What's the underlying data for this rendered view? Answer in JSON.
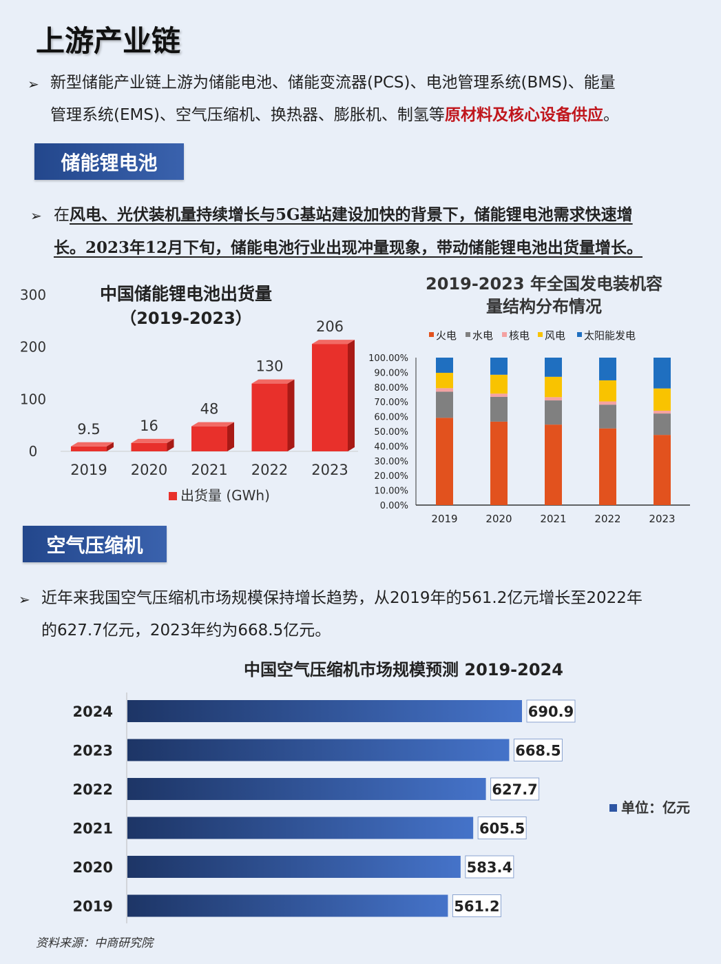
{
  "page": {
    "title": "上游产业链",
    "intro": {
      "part1": "新型储能产业链上游为储能电池、储能变流器(PCS)、电池管理系统(BMS)、能量",
      "part2": "管理系统(EMS)、空气压缩机、换热器、膨胀机、制氢等",
      "highlight": "原材料及核心设备供应",
      "end": "。"
    },
    "section1": {
      "banner": "储能锂电池",
      "text": {
        "p1": "在",
        "b1": "风电、光伏装机量持续增长与5G基站建设加快的背景下，储能锂电池需求快速增",
        "b2": "长。2023年12月下旬，储能电池行业出现冲量现象，带动储能锂电池出货量增长。"
      }
    },
    "section2": {
      "banner": "空气压缩机",
      "text": {
        "line1": "近年来我国空气压缩机市场规模保持增长趋势，从2019年的561.2亿元增长至2022年",
        "line2": "的627.7亿元，2023年约为668.5亿元。"
      }
    },
    "source": "资料来源：中商研究院",
    "colors": {
      "banner": "#2c4f95",
      "bar_red": "#e8302b",
      "thermal": "#e2521e",
      "hydro": "#808080",
      "nuclear": "#f4a2a2",
      "wind": "#f9c300",
      "solar": "#1f6fc0",
      "hbar": "#2d55a3"
    }
  },
  "chart_data": [
    {
      "type": "bar",
      "title_line1": "中国储能锂电池出货量",
      "title_line2": "（2019-2023）",
      "categories": [
        "2019",
        "2020",
        "2021",
        "2022",
        "2023"
      ],
      "series": [
        {
          "name": "出货量 (GWh)",
          "values": [
            9.5,
            16,
            48,
            130,
            206
          ]
        }
      ],
      "data_labels": [
        "9.5",
        "16",
        "48",
        "130",
        "206"
      ],
      "yticks": [
        "0",
        "100",
        "200",
        "300"
      ],
      "ylim": [
        0,
        300
      ],
      "legend": "bottom"
    },
    {
      "type": "bar",
      "stacked": true,
      "title_line1": "2019-2023 年全国发电装机容",
      "title_line2": "量结构分布情况",
      "categories": [
        "2019",
        "2020",
        "2021",
        "2022",
        "2023"
      ],
      "series": [
        {
          "name": "火电",
          "values": [
            59.2,
            56.6,
            54.6,
            52.0,
            47.6
          ]
        },
        {
          "name": "水电",
          "values": [
            17.7,
            16.8,
            16.4,
            16.1,
            14.5
          ]
        },
        {
          "name": "核电",
          "values": [
            2.4,
            2.2,
            2.2,
            2.2,
            1.9
          ]
        },
        {
          "name": "风电",
          "values": [
            10.4,
            12.8,
            13.8,
            14.3,
            15.1
          ]
        },
        {
          "name": "太阳能发电",
          "values": [
            10.3,
            11.6,
            13.0,
            15.4,
            20.9
          ]
        }
      ],
      "yticks": [
        "0.00%",
        "10.00%",
        "20.00%",
        "30.00%",
        "40.00%",
        "50.00%",
        "60.00%",
        "70.00%",
        "80.00%",
        "90.00%",
        "100.00%"
      ],
      "ylim": [
        0,
        100
      ],
      "legend": "top"
    },
    {
      "type": "bar",
      "orientation": "horizontal",
      "title": "中国空气压缩机市场规模预测 2019-2024",
      "categories": [
        "2024",
        "2023",
        "2022",
        "2021",
        "2020",
        "2019"
      ],
      "values": [
        690.9,
        668.5,
        627.7,
        605.5,
        583.4,
        561.2
      ],
      "data_labels": [
        "690.9",
        "668.5",
        "627.7",
        "605.5",
        "583.4",
        "561.2"
      ],
      "legend": "单位：亿元",
      "xlim": [
        0,
        720
      ]
    }
  ]
}
